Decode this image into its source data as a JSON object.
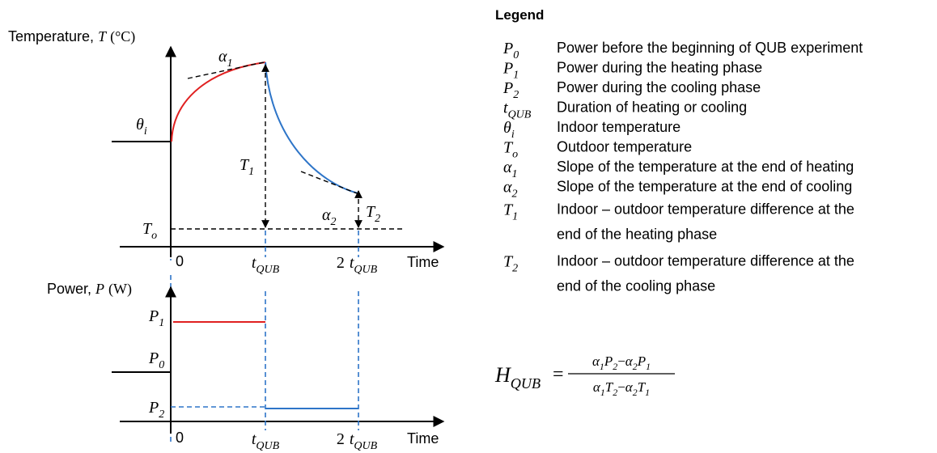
{
  "temperature_plot": {
    "axis_label": {
      "text": "Temperature,",
      "symbol": "T",
      "unit": "(°C)"
    },
    "symbols": [
      {
        "base": "θ",
        "sub": "i"
      },
      {
        "base": "α",
        "sub": "1"
      },
      {
        "base": "T",
        "sub": "1"
      },
      {
        "base": "α",
        "sub": "2"
      },
      {
        "base": "T",
        "sub": "2"
      },
      {
        "base": "T",
        "sub": "o"
      }
    ],
    "x_ticks": [
      "0",
      {
        "base": "t",
        "sub": "QUB"
      },
      {
        "prefix": "2",
        "base": "t",
        "sub": "QUB"
      }
    ],
    "x_axis_label": "Time"
  },
  "power_plot": {
    "axis_label": {
      "text": "Power,",
      "symbol": "P",
      "unit": "(W)"
    },
    "symbols": [
      {
        "base": "P",
        "sub": "1"
      },
      {
        "base": "P",
        "sub": "0"
      },
      {
        "base": "P",
        "sub": "2"
      }
    ],
    "x_ticks": [
      "0",
      {
        "base": "t",
        "sub": "QUB"
      },
      {
        "prefix": "2",
        "base": "t",
        "sub": "QUB"
      }
    ],
    "x_axis_label": "Time"
  },
  "legend": {
    "title": "Legend",
    "entries": [
      {
        "symbol": {
          "base": "P",
          "sub": "0"
        },
        "description": [
          "Power before the beginning of QUB experiment"
        ]
      },
      {
        "symbol": {
          "base": "P",
          "sub": "1"
        },
        "description": [
          "Power during the heating phase"
        ]
      },
      {
        "symbol": {
          "base": "P",
          "sub": "2"
        },
        "description": [
          "Power during the cooling phase"
        ]
      },
      {
        "symbol": {
          "base": "t",
          "sub": "QUB"
        },
        "description": [
          "Duration of heating or cooling"
        ]
      },
      {
        "symbol": {
          "base": "θ",
          "sub": "i"
        },
        "description": [
          "Indoor temperature"
        ]
      },
      {
        "symbol": {
          "base": "T",
          "sub": "o"
        },
        "description": [
          "Outdoor temperature"
        ]
      },
      {
        "symbol": {
          "base": "α",
          "sub": "1"
        },
        "description": [
          "Slope of the temperature at the end of heating"
        ]
      },
      {
        "symbol": {
          "base": "α",
          "sub": "2"
        },
        "description": [
          "Slope of the temperature at the end of cooling"
        ]
      },
      {
        "symbol": {
          "base": "T",
          "sub": "1"
        },
        "description": [
          "Indoor – outdoor temperature difference at the",
          "end of the heating phase"
        ]
      },
      {
        "symbol": {
          "base": "T",
          "sub": "2"
        },
        "description": [
          "Indoor – outdoor temperature difference at the",
          "end of the cooling phase"
        ]
      }
    ]
  },
  "formula": {
    "lhs": {
      "base": "H",
      "sub": "QUB"
    },
    "equals": "=",
    "numerator": [
      {
        "base": "α",
        "sub": "1"
      },
      {
        "base": "P",
        "sub": "2"
      },
      "−",
      {
        "base": "α",
        "sub": "2"
      },
      {
        "base": "P",
        "sub": "1"
      }
    ],
    "denominator": [
      {
        "base": "α",
        "sub": "1"
      },
      {
        "base": "T",
        "sub": "2"
      },
      "−",
      {
        "base": "α",
        "sub": "2"
      },
      {
        "base": "T",
        "sub": "1"
      }
    ]
  }
}
